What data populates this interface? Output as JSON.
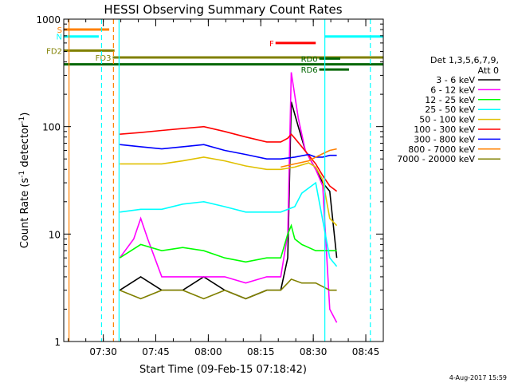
{
  "chart_data": {
    "type": "line",
    "title": "HESSI Observing Summary Count Rates",
    "xlabel": "Start Time (09-Feb-15 07:18:42)",
    "ylabel_prefix": "Count Rate (s",
    "ylabel_sup1": "-1",
    "ylabel_mid": " detector",
    "ylabel_sup2": "-1",
    "ylabel_suffix": ")",
    "yscale": "log",
    "ylim": [
      1,
      1000
    ],
    "xlim_minutes": [
      0,
      91.3
    ],
    "x_ticks": [
      {
        "label": "07:30",
        "min": 11.3
      },
      {
        "label": "07:45",
        "min": 26.3
      },
      {
        "label": "08:00",
        "min": 41.3
      },
      {
        "label": "08:15",
        "min": 56.3
      },
      {
        "label": "08:30",
        "min": 71.3
      },
      {
        "label": "08:45",
        "min": 86.3
      }
    ],
    "y_ticks": [
      {
        "label": "1",
        "value": 1
      },
      {
        "label": "10",
        "value": 10
      },
      {
        "label": "100",
        "value": 100
      },
      {
        "label": "1000",
        "value": 1000
      }
    ],
    "legend": {
      "header1": "Det 1,3,5,6,7,9,",
      "header2": "Att 0",
      "placement": "right"
    },
    "series": [
      {
        "name": "3 - 6 keV",
        "color": "#000000"
      },
      {
        "name": "6 - 12 keV",
        "color": "#ff00ff"
      },
      {
        "name": "12 - 25 keV",
        "color": "#00ff00"
      },
      {
        "name": "25 - 50 keV",
        "color": "#00ffff"
      },
      {
        "name": "50 - 100 keV",
        "color": "#e0c000"
      },
      {
        "name": "100 - 300 keV",
        "color": "#ff0000"
      },
      {
        "name": "300 - 800 keV",
        "color": "#0000ff"
      },
      {
        "name": "800 - 7000 keV",
        "color": "#ff8000"
      },
      {
        "name": "7000 - 20000 keV",
        "color": "#808000"
      }
    ],
    "series_values": [
      {
        "x": [
          16,
          22,
          28,
          34,
          40,
          46,
          52,
          58,
          62,
          64,
          65,
          67,
          69,
          72,
          74,
          76,
          78
        ],
        "y": [
          3,
          4,
          3,
          3,
          4,
          3,
          2.5,
          3,
          3,
          6,
          170,
          100,
          60,
          40,
          30,
          25,
          6
        ]
      },
      {
        "x": [
          16,
          20,
          22,
          24,
          26,
          28,
          34,
          40,
          46,
          52,
          58,
          62,
          64,
          65,
          67,
          69,
          72,
          74,
          76,
          78
        ],
        "y": [
          6,
          9,
          14,
          9,
          6,
          4,
          4,
          4,
          4,
          3.5,
          4,
          4,
          10,
          320,
          120,
          60,
          40,
          28,
          2,
          1.5
        ]
      },
      {
        "x": [
          16,
          22,
          28,
          34,
          40,
          46,
          52,
          58,
          62,
          64,
          65,
          66,
          68,
          72,
          76,
          78
        ],
        "y": [
          6,
          8,
          7,
          7.5,
          7,
          6,
          5.5,
          6,
          6,
          10,
          12,
          9,
          8,
          7,
          7,
          7
        ]
      },
      {
        "x": [
          16,
          22,
          28,
          34,
          40,
          46,
          52,
          58,
          62,
          66,
          68,
          72,
          76,
          78
        ],
        "y": [
          16,
          17,
          17,
          19,
          20,
          18,
          16,
          16,
          16,
          18,
          24,
          30,
          6,
          5
        ]
      },
      {
        "x": [
          16,
          22,
          28,
          34,
          40,
          46,
          52,
          58,
          62,
          66,
          70,
          72,
          74,
          76,
          78
        ],
        "y": [
          45,
          45,
          45,
          48,
          52,
          48,
          43,
          40,
          40,
          42,
          46,
          42,
          32,
          14,
          12
        ]
      },
      {
        "x": [
          16,
          22,
          28,
          34,
          40,
          46,
          52,
          58,
          62,
          64,
          65,
          66,
          68,
          72,
          74,
          76,
          78
        ],
        "y": [
          85,
          88,
          92,
          96,
          100,
          90,
          80,
          72,
          72,
          78,
          85,
          78,
          65,
          45,
          35,
          28,
          25
        ]
      },
      {
        "x": [
          16,
          22,
          28,
          34,
          40,
          46,
          52,
          58,
          62,
          66,
          70,
          72,
          74,
          76,
          78
        ],
        "y": [
          68,
          65,
          62,
          65,
          68,
          60,
          55,
          50,
          50,
          52,
          55,
          52,
          52,
          54,
          54
        ]
      },
      {
        "x": [
          62,
          66,
          70,
          72,
          74,
          76,
          78
        ],
        "y": [
          42,
          45,
          48,
          52,
          56,
          60,
          62
        ]
      },
      {
        "x": [
          16,
          22,
          28,
          34,
          40,
          46,
          52,
          58,
          62,
          64,
          65,
          68,
          72,
          76,
          78
        ],
        "y": [
          3,
          2.5,
          3,
          3,
          2.5,
          3,
          2.5,
          3,
          3,
          3.5,
          3.8,
          3.5,
          3.5,
          3,
          3
        ]
      }
    ],
    "state_bars": [
      {
        "label": "S",
        "color": "#ff8000",
        "x0": 0,
        "x1": 13,
        "value": 800
      },
      {
        "label": "N",
        "color": "#00ffff",
        "x0": 0,
        "x1": 10,
        "value": 690
      },
      {
        "label": "FD2",
        "color": "#808000",
        "x0": 0,
        "x1": 14.5,
        "value": 510
      },
      {
        "label": "FD3",
        "color": "#808000",
        "x0": 14,
        "x1": 91.3,
        "value": 440
      },
      {
        "label": "",
        "color": "#006600",
        "x0": 0,
        "x1": 91.3,
        "value": 380
      },
      {
        "label": "F",
        "color": "#ff0000",
        "x0": 60.5,
        "x1": 72,
        "value": 600
      },
      {
        "label": "",
        "color": "#00ffff",
        "x0": 74.5,
        "x1": 91.3,
        "value": 690
      },
      {
        "label": "RD0",
        "color": "#006600",
        "x0": 73,
        "x1": 79,
        "value": 430
      },
      {
        "label": "RD6",
        "color": "#006600",
        "x0": 73,
        "x1": 81.5,
        "value": 340
      }
    ],
    "vertical_markers": [
      {
        "min": 1.5,
        "color": "#ff8000",
        "style": "solid"
      },
      {
        "min": 10.8,
        "color": "#00ffff",
        "style": "dashed"
      },
      {
        "min": 14.2,
        "color": "#ff8000",
        "style": "dashed"
      },
      {
        "min": 15.8,
        "color": "#00ffff",
        "style": "solid"
      },
      {
        "min": 74.6,
        "color": "#00ffff",
        "style": "solid"
      },
      {
        "min": 87.6,
        "color": "#00ffff",
        "style": "dashed"
      }
    ]
  },
  "footer": {
    "date": "4-Aug-2017 15:59"
  }
}
